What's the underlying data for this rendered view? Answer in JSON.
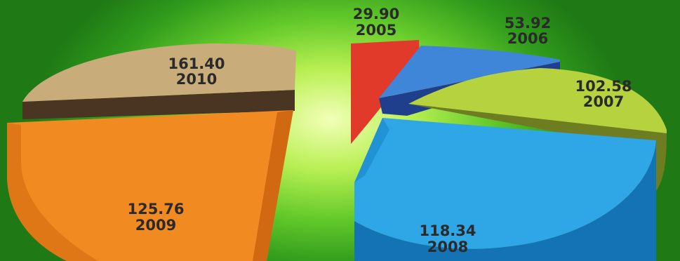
{
  "chart_data": {
    "type": "pie",
    "title": "",
    "slices": [
      {
        "label": "2005",
        "value": "29.90",
        "color": "#e23a2a"
      },
      {
        "label": "2006",
        "value": "53.92",
        "color": "#3f86d8"
      },
      {
        "label": "2007",
        "value": "102.58",
        "color": "#b6d23e"
      },
      {
        "label": "2008",
        "value": "118.34",
        "color": "#2fa6e6"
      },
      {
        "label": "2009",
        "value": "125.76",
        "color": "#f28a22"
      },
      {
        "label": "2010",
        "value": "161.40",
        "color": "#c8ad7a"
      }
    ],
    "legend": "none",
    "exploded": true,
    "style": "3d"
  }
}
